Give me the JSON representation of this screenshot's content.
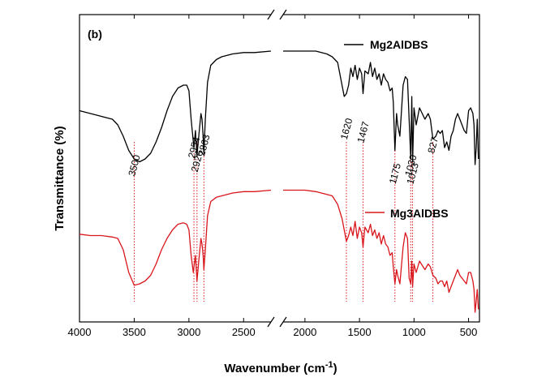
{
  "chart_data": {
    "type": "line",
    "panel_label": "(b)",
    "xlabel": "Wavenumber (cm",
    "xlabel_sup": "-1",
    "xlabel_close": ")",
    "ylabel": "Transmittance (%)",
    "x_axis": {
      "reversed": true,
      "broken": true,
      "segments": [
        [
          4000,
          2250
        ],
        [
          2200,
          400
        ]
      ],
      "ticks": [
        4000,
        3500,
        3000,
        2500,
        2000,
        1500,
        1000,
        500
      ],
      "tick_labels": [
        "4000",
        "3500",
        "3000",
        "2500",
        "2000",
        "1500",
        "1000",
        "500"
      ]
    },
    "y_axis": {
      "ticks_shown": false,
      "range": [
        0,
        100
      ]
    },
    "legend_placement": "inline labels",
    "series": [
      {
        "name": "Mg2AlDBS",
        "color": "#000000",
        "x": [
          4000,
          3900,
          3800,
          3700,
          3650,
          3600,
          3550,
          3500,
          3450,
          3400,
          3350,
          3300,
          3250,
          3200,
          3150,
          3100,
          3050,
          3020,
          3000,
          2980,
          2960,
          2954,
          2940,
          2926,
          2910,
          2890,
          2880,
          2870,
          2863,
          2850,
          2830,
          2800,
          2750,
          2700,
          2600,
          2500,
          2400,
          2250,
          2200,
          2100,
          2000,
          1900,
          1800,
          1750,
          1700,
          1660,
          1640,
          1620,
          1600,
          1580,
          1560,
          1540,
          1520,
          1500,
          1480,
          1467,
          1450,
          1420,
          1400,
          1380,
          1360,
          1340,
          1320,
          1300,
          1280,
          1260,
          1240,
          1220,
          1200,
          1190,
          1175,
          1160,
          1150,
          1130,
          1100,
          1080,
          1060,
          1045,
          1030,
          1020,
          1013,
          1000,
          980,
          950,
          900,
          870,
          850,
          827,
          800,
          780,
          760,
          740,
          720,
          700,
          680,
          660,
          640,
          620,
          600,
          580,
          560,
          540,
          520,
          500,
          480,
          460,
          450,
          440,
          430,
          420,
          410
        ],
        "y": [
          73,
          72,
          71,
          70,
          68,
          64,
          59,
          56,
          55,
          56,
          58,
          62,
          67,
          73,
          78,
          81,
          82,
          82,
          80,
          70,
          62,
          60,
          66,
          57,
          64,
          72,
          70,
          64,
          58,
          70,
          83,
          89,
          91,
          92,
          93,
          93.5,
          93.5,
          94,
          94,
          94,
          94,
          94,
          93,
          92,
          90,
          82,
          78,
          79,
          82,
          88,
          85,
          89,
          84,
          88,
          86,
          79,
          87,
          86,
          90,
          85,
          88,
          84,
          86,
          82,
          86,
          84,
          83,
          80,
          81,
          76,
          59,
          72,
          68,
          64,
          82,
          85,
          84,
          70,
          56,
          78,
          55,
          74,
          68,
          74,
          70,
          72,
          70,
          63,
          64,
          66,
          65,
          66,
          60,
          62,
          59,
          64,
          66,
          70,
          72,
          70,
          68,
          66,
          65,
          73,
          74,
          72,
          68,
          54,
          60,
          70,
          56
        ]
      },
      {
        "name": "Mg3AlDBS",
        "color": "#d9161c",
        "x": [
          4000,
          3900,
          3800,
          3700,
          3650,
          3600,
          3550,
          3500,
          3450,
          3400,
          3350,
          3300,
          3250,
          3200,
          3150,
          3100,
          3050,
          3020,
          3000,
          2980,
          2960,
          2954,
          2940,
          2926,
          2910,
          2890,
          2880,
          2870,
          2863,
          2850,
          2830,
          2800,
          2750,
          2700,
          2600,
          2500,
          2400,
          2250,
          2200,
          2100,
          2000,
          1900,
          1800,
          1750,
          1700,
          1660,
          1640,
          1620,
          1600,
          1580,
          1560,
          1540,
          1520,
          1500,
          1480,
          1467,
          1450,
          1420,
          1400,
          1380,
          1360,
          1340,
          1320,
          1300,
          1280,
          1260,
          1240,
          1220,
          1200,
          1190,
          1175,
          1160,
          1150,
          1130,
          1100,
          1080,
          1060,
          1045,
          1030,
          1020,
          1013,
          1000,
          980,
          950,
          900,
          870,
          850,
          827,
          800,
          780,
          760,
          740,
          720,
          700,
          680,
          660,
          640,
          620,
          600,
          580,
          560,
          540,
          520,
          500,
          480,
          460,
          450,
          440,
          430,
          420,
          410
        ],
        "y": [
          29.5,
          29,
          29,
          28.5,
          28,
          24,
          16,
          11.5,
          12,
          13,
          15,
          19,
          24,
          28,
          31,
          33,
          33.5,
          33,
          31,
          22,
          16,
          18,
          22,
          13,
          20,
          28,
          26,
          22,
          17,
          24,
          36,
          41,
          42.5,
          43,
          44,
          44.5,
          44.5,
          45,
          45,
          45,
          45,
          44.5,
          43.5,
          43,
          40,
          35,
          31,
          27,
          29,
          32,
          29,
          34,
          28,
          32,
          30,
          25,
          32,
          30,
          33,
          29,
          31,
          28,
          30,
          26,
          29,
          26,
          25,
          22,
          23,
          18,
          12,
          17,
          15,
          12,
          25,
          30,
          28,
          14,
          12,
          20,
          11,
          19,
          16,
          20,
          17,
          19,
          18,
          15,
          14,
          12,
          13,
          13,
          11,
          13,
          9,
          11,
          13,
          15,
          17,
          15,
          14,
          13,
          12,
          16,
          16,
          13,
          10,
          2,
          6,
          10,
          3
        ]
      }
    ],
    "annotations": [
      {
        "label": "3500",
        "x": 3500
      },
      {
        "label": "2954",
        "x": 2954
      },
      {
        "label": "2926",
        "x": 2926
      },
      {
        "label": "2863",
        "x": 2863
      },
      {
        "label": "1620",
        "x": 1620
      },
      {
        "label": "1467",
        "x": 1467
      },
      {
        "label": "1175",
        "x": 1175
      },
      {
        "label": "1030",
        "x": 1030
      },
      {
        "label": "1013",
        "x": 1013
      },
      {
        "label": "827",
        "x": 827
      }
    ]
  }
}
